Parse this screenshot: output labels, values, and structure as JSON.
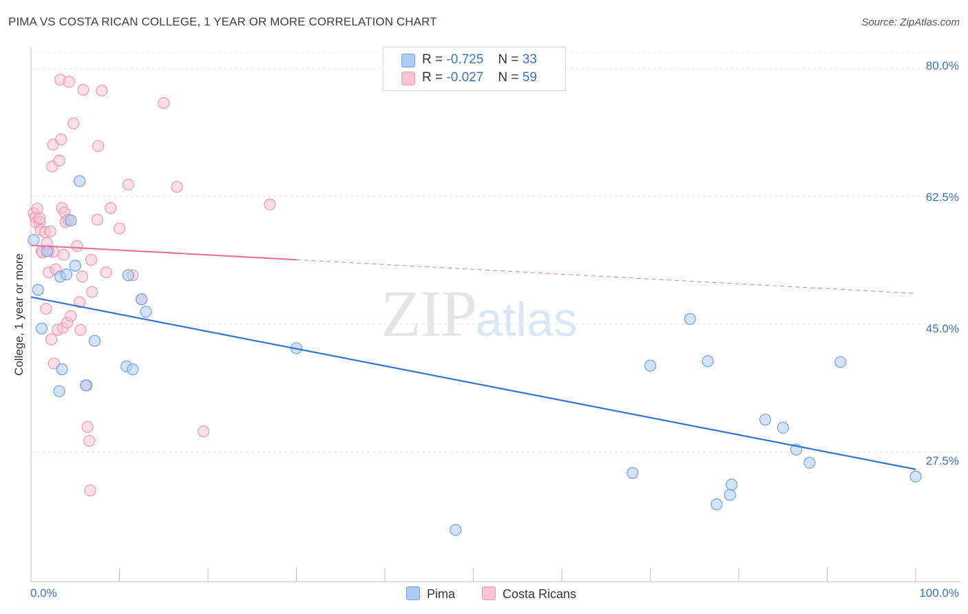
{
  "title": "PIMA VS COSTA RICAN COLLEGE, 1 YEAR OR MORE CORRELATION CHART",
  "source": "Source: ZipAtlas.com",
  "watermark": {
    "zip": "ZIP",
    "atlas": "atlas"
  },
  "legend": {
    "r_label": "R =",
    "n_label": "N =",
    "rows": [
      {
        "r": "-0.725",
        "n": "33"
      },
      {
        "r": "-0.027",
        "n": "59"
      }
    ],
    "bottom": [
      "Pima",
      "Costa Ricans"
    ]
  },
  "colors": {
    "pima_fill": "#aecbf2",
    "pima_stroke": "#6f9fe0",
    "pima_line": "#2f74d0",
    "cr_fill": "#f8c3d4",
    "cr_stroke": "#eb96b3",
    "cr_line": "#e8709a",
    "tick_text": "#3a72c4"
  },
  "chart_data": {
    "type": "scatter",
    "title": "PIMA VS COSTA RICAN COLLEGE, 1 YEAR OR MORE CORRELATION CHART",
    "xlabel": "",
    "ylabel": "College, 1 year or more",
    "xlim": [
      0,
      100
    ],
    "ylim": [
      9.7,
      83
    ],
    "x_tick_labels": [
      "0.0%",
      "100.0%"
    ],
    "y_ticks": [
      80.0,
      62.5,
      45.0,
      27.5
    ],
    "y_tick_labels": [
      "80.0%",
      "62.5%",
      "45.0%",
      "27.5%"
    ],
    "grid": true,
    "legend_position": "top-center",
    "series": [
      {
        "name": "Pima",
        "r": -0.725,
        "n": 33,
        "trend": {
          "x0": 0,
          "y0": 48.7,
          "x1": 100,
          "y1": 25.1,
          "solid_until": 100
        },
        "points": [
          {
            "x": 0.3,
            "y": 56.5
          },
          {
            "x": 0.8,
            "y": 49.7
          },
          {
            "x": 1.2,
            "y": 44.4
          },
          {
            "x": 1.8,
            "y": 55.0
          },
          {
            "x": 3.3,
            "y": 51.5
          },
          {
            "x": 4.0,
            "y": 51.8
          },
          {
            "x": 4.5,
            "y": 59.2
          },
          {
            "x": 5.0,
            "y": 53.0
          },
          {
            "x": 5.5,
            "y": 64.6
          },
          {
            "x": 6.2,
            "y": 36.6
          },
          {
            "x": 3.5,
            "y": 38.8
          },
          {
            "x": 3.2,
            "y": 35.8
          },
          {
            "x": 7.2,
            "y": 42.7
          },
          {
            "x": 11.0,
            "y": 51.7
          },
          {
            "x": 12.5,
            "y": 48.4
          },
          {
            "x": 13.0,
            "y": 46.7
          },
          {
            "x": 10.8,
            "y": 39.2
          },
          {
            "x": 11.5,
            "y": 38.8
          },
          {
            "x": 30.0,
            "y": 41.7
          },
          {
            "x": 48.0,
            "y": 16.8
          },
          {
            "x": 68.0,
            "y": 24.6
          },
          {
            "x": 70.0,
            "y": 39.3
          },
          {
            "x": 74.5,
            "y": 45.7
          },
          {
            "x": 76.5,
            "y": 39.9
          },
          {
            "x": 77.5,
            "y": 20.3
          },
          {
            "x": 79.0,
            "y": 21.6
          },
          {
            "x": 79.2,
            "y": 23.0
          },
          {
            "x": 83.0,
            "y": 31.9
          },
          {
            "x": 85.0,
            "y": 30.8
          },
          {
            "x": 86.5,
            "y": 27.8
          },
          {
            "x": 88.0,
            "y": 26.0
          },
          {
            "x": 91.5,
            "y": 39.8
          },
          {
            "x": 100.0,
            "y": 24.1
          }
        ]
      },
      {
        "name": "Costa Ricans",
        "r": -0.027,
        "n": 59,
        "trend": {
          "x0": 0,
          "y0": 55.8,
          "x1": 100,
          "y1": 49.2,
          "solid_until": 30
        },
        "points": [
          {
            "x": 0.3,
            "y": 60.2
          },
          {
            "x": 0.5,
            "y": 59.6
          },
          {
            "x": 0.6,
            "y": 58.9
          },
          {
            "x": 0.7,
            "y": 60.8
          },
          {
            "x": 1.0,
            "y": 59.0
          },
          {
            "x": 1.1,
            "y": 57.9
          },
          {
            "x": 1.2,
            "y": 55.0
          },
          {
            "x": 1.3,
            "y": 54.8
          },
          {
            "x": 1.6,
            "y": 57.6
          },
          {
            "x": 1.8,
            "y": 56.1
          },
          {
            "x": 2.0,
            "y": 52.1
          },
          {
            "x": 1.7,
            "y": 47.1
          },
          {
            "x": 2.2,
            "y": 57.7
          },
          {
            "x": 2.5,
            "y": 54.9
          },
          {
            "x": 2.3,
            "y": 42.9
          },
          {
            "x": 2.6,
            "y": 39.6
          },
          {
            "x": 2.5,
            "y": 69.6
          },
          {
            "x": 2.4,
            "y": 66.6
          },
          {
            "x": 2.8,
            "y": 52.5
          },
          {
            "x": 3.0,
            "y": 44.2
          },
          {
            "x": 3.2,
            "y": 67.4
          },
          {
            "x": 3.4,
            "y": 70.3
          },
          {
            "x": 3.3,
            "y": 78.5
          },
          {
            "x": 3.5,
            "y": 60.9
          },
          {
            "x": 3.7,
            "y": 54.5
          },
          {
            "x": 3.8,
            "y": 60.3
          },
          {
            "x": 3.6,
            "y": 44.5
          },
          {
            "x": 3.9,
            "y": 59.0
          },
          {
            "x": 4.1,
            "y": 45.2
          },
          {
            "x": 4.2,
            "y": 59.3
          },
          {
            "x": 4.3,
            "y": 78.2
          },
          {
            "x": 4.5,
            "y": 46.1
          },
          {
            "x": 4.8,
            "y": 72.5
          },
          {
            "x": 5.2,
            "y": 55.7
          },
          {
            "x": 5.5,
            "y": 48.0
          },
          {
            "x": 5.6,
            "y": 44.2
          },
          {
            "x": 5.8,
            "y": 51.5
          },
          {
            "x": 5.9,
            "y": 77.1
          },
          {
            "x": 6.3,
            "y": 36.6
          },
          {
            "x": 6.4,
            "y": 30.9
          },
          {
            "x": 6.6,
            "y": 29.0
          },
          {
            "x": 6.7,
            "y": 22.2
          },
          {
            "x": 6.8,
            "y": 53.8
          },
          {
            "x": 6.9,
            "y": 49.4
          },
          {
            "x": 7.5,
            "y": 59.3
          },
          {
            "x": 7.6,
            "y": 69.4
          },
          {
            "x": 8.0,
            "y": 77.0
          },
          {
            "x": 8.5,
            "y": 52.1
          },
          {
            "x": 9.0,
            "y": 60.9
          },
          {
            "x": 10.0,
            "y": 58.1
          },
          {
            "x": 11.5,
            "y": 51.7
          },
          {
            "x": 11.0,
            "y": 64.1
          },
          {
            "x": 12.5,
            "y": 48.4
          },
          {
            "x": 15.0,
            "y": 75.3
          },
          {
            "x": 16.5,
            "y": 63.8
          },
          {
            "x": 19.5,
            "y": 30.3
          },
          {
            "x": 27.0,
            "y": 61.4
          },
          {
            "x": 1.0,
            "y": 59.5
          },
          {
            "x": 2.0,
            "y": 55.0
          }
        ]
      }
    ]
  }
}
